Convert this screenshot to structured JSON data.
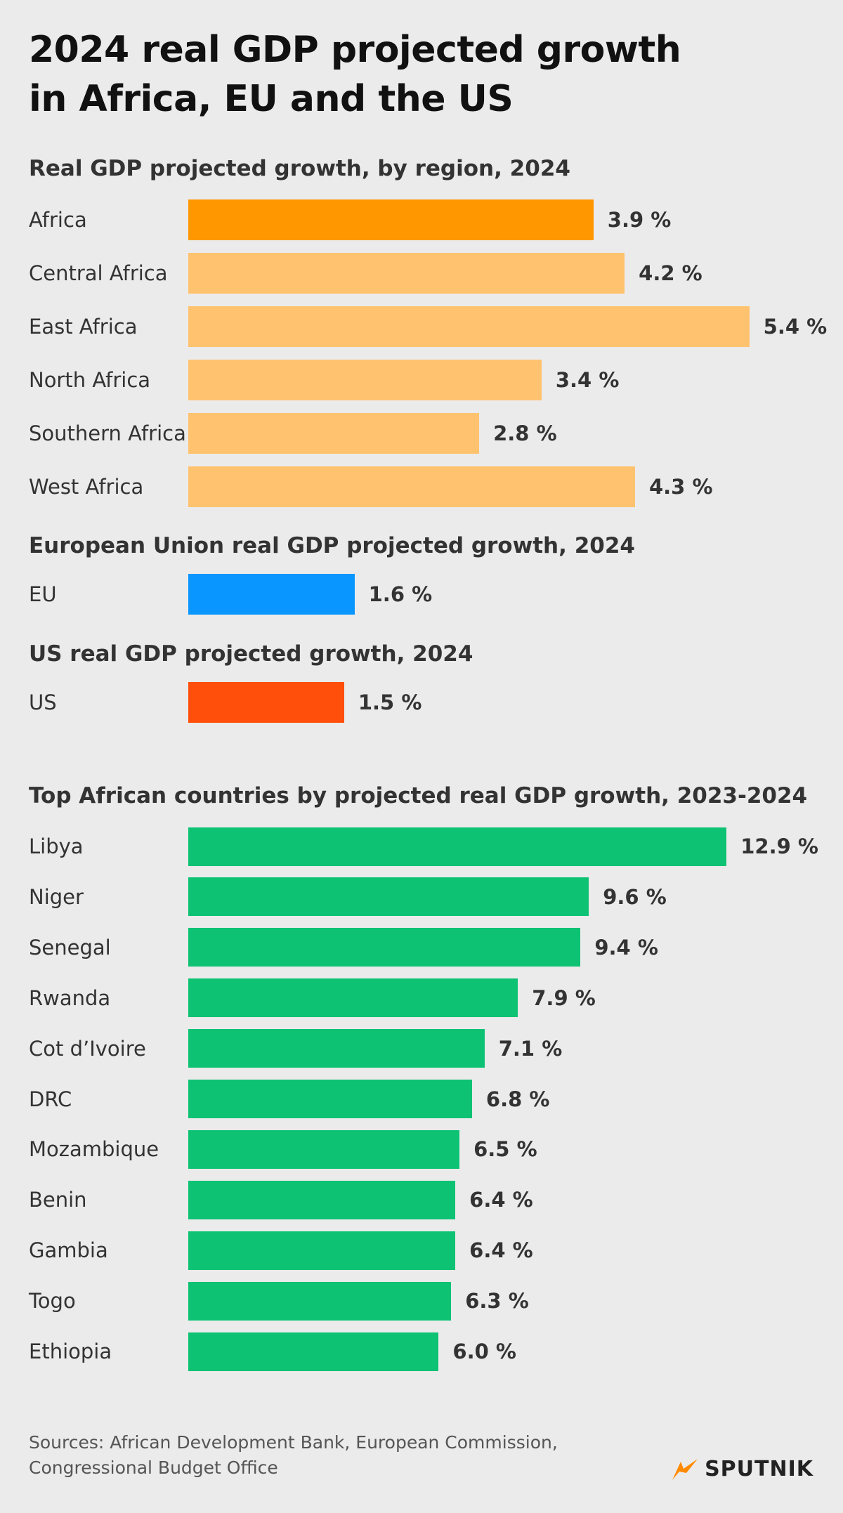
{
  "title": "2024 real GDP projected growth\nin Africa, EU and the US",
  "chart_data": [
    {
      "type": "bar",
      "subtitle": "Real GDP projected growth, by region, 2024",
      "categories": [
        "Africa",
        "Central Africa",
        "East Africa",
        "North Africa",
        "Southern Africa",
        "West Africa"
      ],
      "values": [
        3.9,
        4.2,
        5.4,
        3.4,
        2.8,
        4.3
      ],
      "value_labels": [
        "3.9 %",
        "4.2 %",
        "5.4 %",
        "3.4 %",
        "2.8 %",
        "4.3 %"
      ],
      "colors": [
        "#ff9800",
        "#ffc26e",
        "#ffc26e",
        "#ffc26e",
        "#ffc26e",
        "#ffc26e"
      ]
    },
    {
      "type": "bar",
      "subtitle": "European Union real GDP projected growth, 2024",
      "categories": [
        "EU"
      ],
      "values": [
        1.6
      ],
      "value_labels": [
        "1.6 %"
      ],
      "color": "#0a96ff"
    },
    {
      "type": "bar",
      "subtitle": "US real GDP projected growth, 2024",
      "categories": [
        "US"
      ],
      "values": [
        1.5
      ],
      "value_labels": [
        "1.5 %"
      ],
      "color": "#ff4f0a"
    },
    {
      "type": "bar",
      "subtitle": "Top African countries by projected real GDP growth, 2023-2024",
      "categories": [
        "Libya",
        "Niger",
        "Senegal",
        "Rwanda",
        "Cot d’Ivoire",
        "DRC",
        "Mozambique",
        "Benin",
        "Gambia",
        "Togo",
        "Ethiopia"
      ],
      "values": [
        12.9,
        9.6,
        9.4,
        7.9,
        7.1,
        6.8,
        6.5,
        6.4,
        6.4,
        6.3,
        6.0
      ],
      "value_labels": [
        "12.9 %",
        "9.6 %",
        "9.4 %",
        "7.9 %",
        "7.1 %",
        "6.8 %",
        "6.5 %",
        "6.4 %",
        "6.4 %",
        "6.3 %",
        "6.0 %"
      ],
      "color": "#0ec274"
    }
  ],
  "source": "Sources: African Development Bank, European Commission,\nCongressional Budget Office",
  "logo": "SPUTNIK"
}
